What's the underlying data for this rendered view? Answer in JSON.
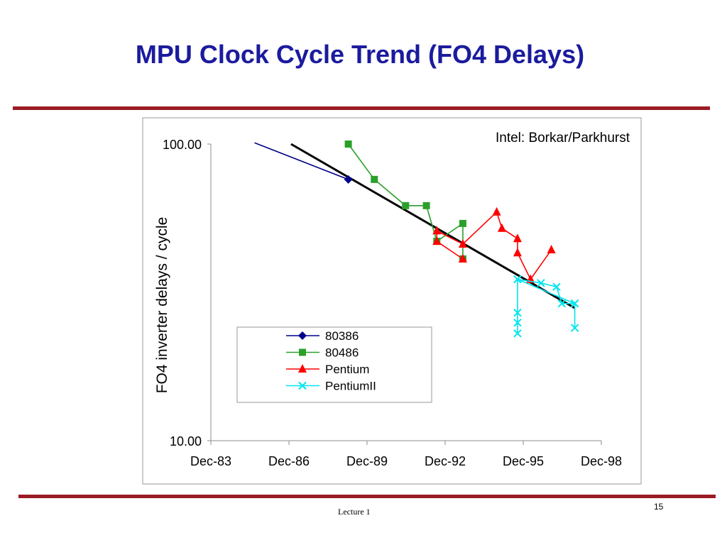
{
  "slide": {
    "title": "MPU Clock Cycle Trend (FO4 Delays)",
    "footer": "Lecture 1",
    "page_number": "15"
  },
  "colors": {
    "title": "#1b1b9e",
    "rule": "#9b1c24",
    "trend": "#000000"
  },
  "chart_data": {
    "type": "scatter",
    "annotation": "Intel: Borkar/Parkhurst",
    "ylabel": "FO4 inverter delays / cycle",
    "xlabel": "",
    "yscale": "log",
    "ylim": [
      10,
      100
    ],
    "y_ticks": [
      {
        "v": 100,
        "label": "100.00"
      },
      {
        "v": 10,
        "label": "10.00"
      }
    ],
    "xlim": [
      1983.92,
      1998.92
    ],
    "x_ticks": [
      {
        "v": 1983.92,
        "label": "Dec-83"
      },
      {
        "v": 1986.92,
        "label": "Dec-86"
      },
      {
        "v": 1989.92,
        "label": "Dec-89"
      },
      {
        "v": 1992.92,
        "label": "Dec-92"
      },
      {
        "v": 1995.92,
        "label": "Dec-95"
      },
      {
        "v": 1998.92,
        "label": "Dec-98"
      }
    ],
    "legend_position": "lower-left",
    "grid": false,
    "series": [
      {
        "name": "80386",
        "color": "#00008b",
        "marker": "diamond",
        "line_points": [
          [
            1985.6,
            101
          ],
          [
            1989.2,
            76
          ]
        ],
        "points": [
          [
            1989.2,
            76
          ]
        ]
      },
      {
        "name": "80486",
        "color": "#2aa02a",
        "marker": "square",
        "points": [
          [
            1989.2,
            100
          ],
          [
            1990.2,
            76
          ],
          [
            1991.4,
            62
          ],
          [
            1992.2,
            62
          ],
          [
            1992.6,
            47
          ],
          [
            1993.6,
            54
          ],
          [
            1993.6,
            41
          ]
        ]
      },
      {
        "name": "Pentium",
        "color": "#ff0000",
        "marker": "triangle",
        "points": [
          [
            1993.6,
            41
          ],
          [
            1992.6,
            47
          ],
          [
            1992.6,
            51
          ],
          [
            1993.6,
            46
          ],
          [
            1994.9,
            59
          ],
          [
            1995.1,
            52
          ],
          [
            1995.7,
            48
          ],
          [
            1995.7,
            43
          ],
          [
            1996.2,
            35
          ],
          [
            1997.0,
            44
          ]
        ]
      },
      {
        "name": "PentiumII",
        "color": "#00e5ee",
        "marker": "x",
        "points": [
          [
            1995.7,
            35
          ],
          [
            1996.6,
            34
          ],
          [
            1997.2,
            33
          ],
          [
            1997.4,
            29
          ],
          [
            1997.9,
            29
          ],
          [
            1997.9,
            24
          ],
          [
            1997.9,
            29
          ],
          [
            1995.7,
            35
          ],
          [
            1995.7,
            27
          ],
          [
            1995.7,
            25
          ],
          [
            1995.7,
            23
          ]
        ]
      }
    ],
    "trend": {
      "name": "",
      "color": "#000000",
      "points": [
        [
          1987.0,
          100
        ],
        [
          1997.9,
          28
        ]
      ]
    }
  }
}
